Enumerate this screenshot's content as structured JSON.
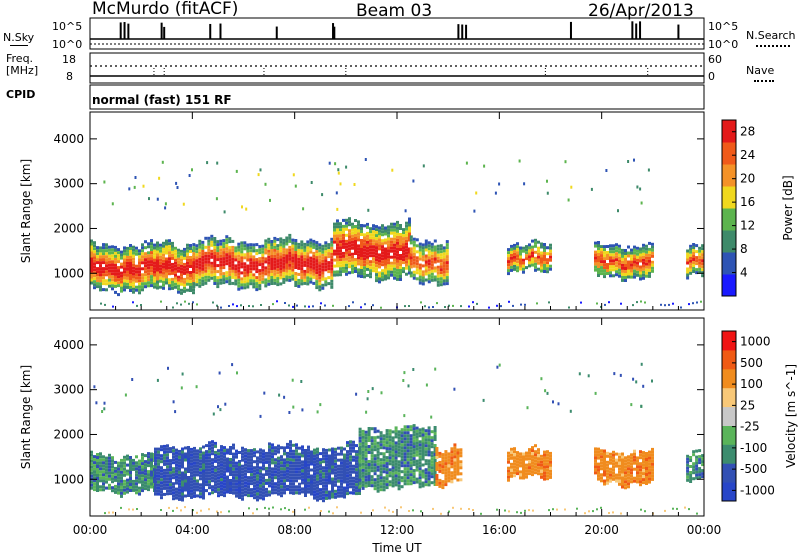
{
  "header": {
    "radar": "McMurdo (fitACF)",
    "beam": "Beam 03",
    "date": "26/Apr/2013"
  },
  "noise_panel": {
    "left_label": "N.Sky",
    "right_label": "N.Search",
    "left_ticks": [
      "10^5",
      "10^0"
    ],
    "right_ticks": [
      "10^5",
      "10^0"
    ]
  },
  "freq_panel": {
    "left_label_1": "Freq.",
    "left_label_2": "[MHz]",
    "right_label": "Nave",
    "left_ticks": [
      "18",
      "8"
    ],
    "right_ticks": [
      "60",
      "0"
    ]
  },
  "cpid": {
    "label": "CPID",
    "text": "normal (fast) 151 RF"
  },
  "colors": {
    "power_scale": [
      "#1a1aff",
      "#2e54b4",
      "#3e8a6a",
      "#5cb44e",
      "#f0d81e",
      "#f49228",
      "#f05a1a",
      "#e41a1a"
    ],
    "velocity_scale": [
      "#f01414",
      "#f05a14",
      "#f08c1e",
      "#f8c878",
      "#c8c8c8",
      "#5ab45a",
      "#3c8c6e",
      "#3250b4",
      "#2846c8"
    ]
  },
  "chart_data": [
    {
      "type": "heatmap",
      "title": "",
      "ylabel": "Slant Range [km]",
      "xlabel": "",
      "x_ticks": [
        "00:00",
        "04:00",
        "08:00",
        "12:00",
        "16:00",
        "20:00",
        "00:00"
      ],
      "y_ticks": [
        1000,
        2000,
        3000,
        4000
      ],
      "ylim": [
        180,
        4600
      ],
      "xlim_hours": [
        0,
        24
      ],
      "colorbar": {
        "label": "Power [dB]",
        "ticks": [
          4,
          8,
          12,
          16,
          20,
          24,
          28
        ],
        "range": [
          0,
          30
        ]
      },
      "scatter_regions": [
        {
          "t_start": 0.0,
          "t_end": 4.0,
          "range_low": 600,
          "range_high": 1700,
          "level": "high"
        },
        {
          "t_start": 4.0,
          "t_end": 9.5,
          "range_low": 700,
          "range_high": 1800,
          "level": "high"
        },
        {
          "t_start": 9.5,
          "t_end": 12.5,
          "range_low": 900,
          "range_high": 2200,
          "level": "high"
        },
        {
          "t_start": 12.5,
          "t_end": 14.0,
          "range_low": 800,
          "range_high": 1800,
          "level": "mid"
        },
        {
          "t_start": 16.3,
          "t_end": 18.0,
          "range_low": 1000,
          "range_high": 1700,
          "level": "mid"
        },
        {
          "t_start": 19.7,
          "t_end": 22.0,
          "range_low": 900,
          "range_high": 1700,
          "level": "mid"
        },
        {
          "t_start": 23.3,
          "t_end": 24.0,
          "range_low": 1000,
          "range_high": 1700,
          "level": "mid"
        }
      ]
    },
    {
      "type": "heatmap",
      "title": "",
      "ylabel": "Slant Range [km]",
      "xlabel": "Time UT",
      "x_ticks": [
        "00:00",
        "04:00",
        "08:00",
        "12:00",
        "16:00",
        "20:00",
        "00:00"
      ],
      "y_ticks": [
        1000,
        2000,
        3000,
        4000
      ],
      "ylim": [
        180,
        4600
      ],
      "xlim_hours": [
        0,
        24
      ],
      "colorbar": {
        "label": "Velocity [m s^-1]",
        "ticks": [
          1000,
          500,
          100,
          25,
          -25,
          -100,
          -500,
          -1000
        ]
      },
      "scatter_regions": [
        {
          "t_start": 0.0,
          "t_end": 2.5,
          "range_low": 700,
          "range_high": 1600,
          "level": "green"
        },
        {
          "t_start": 2.5,
          "t_end": 10.5,
          "range_low": 600,
          "range_high": 1800,
          "level": "blue"
        },
        {
          "t_start": 10.5,
          "t_end": 13.5,
          "range_low": 800,
          "range_high": 2200,
          "level": "green"
        },
        {
          "t_start": 13.5,
          "t_end": 14.5,
          "range_low": 900,
          "range_high": 1800,
          "level": "orange"
        },
        {
          "t_start": 16.3,
          "t_end": 18.0,
          "range_low": 1000,
          "range_high": 1700,
          "level": "orange"
        },
        {
          "t_start": 19.7,
          "t_end": 22.0,
          "range_low": 900,
          "range_high": 1700,
          "level": "orange"
        },
        {
          "t_start": 23.3,
          "t_end": 24.0,
          "range_low": 1000,
          "range_high": 1700,
          "level": "green"
        }
      ]
    }
  ]
}
